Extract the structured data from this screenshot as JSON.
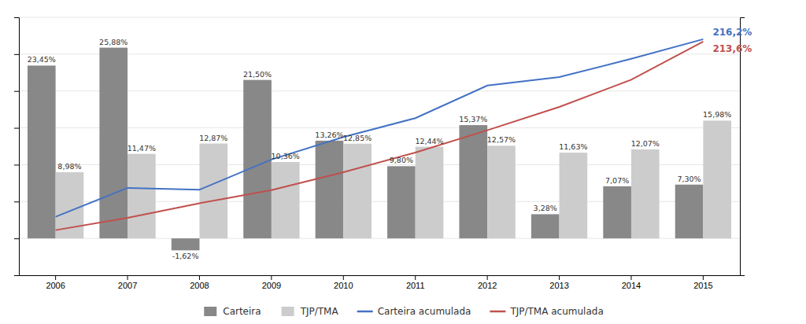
{
  "chart_data": {
    "type": "bar",
    "categories": [
      "2006",
      "2007",
      "2008",
      "2009",
      "2010",
      "2011",
      "2012",
      "2013",
      "2014",
      "2015"
    ],
    "series": [
      {
        "name": "Carteira",
        "type": "bar",
        "color": "#888888",
        "values": [
          23.45,
          25.88,
          -1.62,
          21.5,
          13.26,
          9.8,
          15.37,
          3.28,
          7.07,
          7.3
        ],
        "value_labels": [
          "23,45%",
          "25,88%",
          "-1,62%",
          "21,50%",
          "13,26%",
          "9,80%",
          "15,37%",
          "3,28%",
          "7,07%",
          "7,30%"
        ]
      },
      {
        "name": "TJP/TMA",
        "type": "bar",
        "color": "#cccccc",
        "values": [
          8.98,
          11.47,
          12.87,
          10.36,
          12.85,
          12.44,
          12.57,
          11.63,
          12.07,
          15.98
        ],
        "value_labels": [
          "8,98%",
          "11,47%",
          "12,87%",
          "10,36%",
          "12,85%",
          "12,44%",
          "12,57%",
          "11,63%",
          "12,07%",
          "15,98%"
        ]
      },
      {
        "name": "Carteira acumulada",
        "type": "line",
        "axis": "y2",
        "color": "#4472c4",
        "values": [
          23.45,
          54.83,
          52.87,
          85.59,
          110.0,
          130.55,
          165.97,
          175.1,
          194.9,
          216.2
        ]
      },
      {
        "name": "TJP/TMA acumulada",
        "type": "line",
        "axis": "y2",
        "color": "#c0504d",
        "values": [
          8.98,
          22.4,
          38.15,
          52.35,
          71.9,
          93.23,
          117.36,
          142.72,
          172.22,
          213.6
        ]
      }
    ],
    "ylim": [
      -5,
      30
    ],
    "yticks": [
      0,
      5,
      10,
      15,
      20,
      25,
      30
    ],
    "y2lim": [
      -40,
      240
    ],
    "grid": true,
    "tick_labels": "x",
    "data_labels": true,
    "legend": "bottom",
    "annotations": [
      {
        "text": "216,2%",
        "x": "2015",
        "y": 216.2,
        "axis": "y2",
        "color": "#4472c4"
      },
      {
        "text": "213,6%",
        "x": "2015",
        "y": 213.6,
        "axis": "y2",
        "color": "#c0504d"
      }
    ]
  }
}
